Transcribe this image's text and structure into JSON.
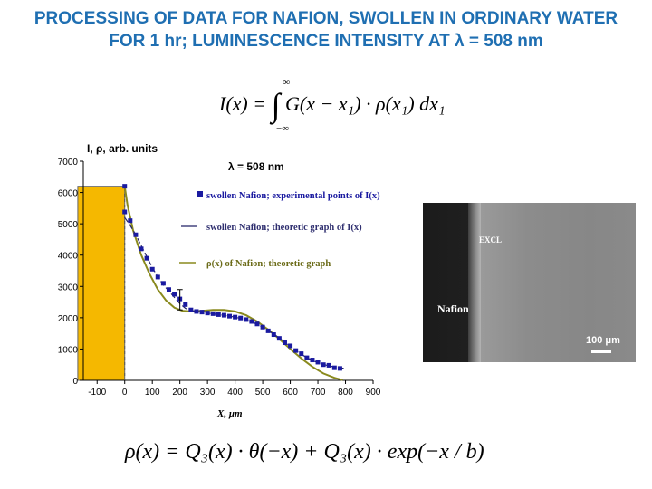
{
  "title_line1": "PROCESSING OF DATA FOR NAFION, SWOLLEN IN ORDINARY WATER",
  "title_line2": "FOR 1 hr; LUMINESCENCE INTENSITY AT λ = 508 nm",
  "formula_top": {
    "lhs": "I(x) = ",
    "upper": "∞",
    "lower": "−∞",
    "integrand": "G(x − x₁) · ρ(x₁) dx₁"
  },
  "formula_bottom": "ρ(x) = Q₃(x) · θ(−x) + Q₃(x) · exp(−x / b)",
  "micrograph": {
    "label_excl": "EXCL",
    "label_nafion": "Nafion",
    "scale_label": "100 μm"
  },
  "chart_data": {
    "type": "line",
    "ylabel": "I, ρ,  arb. units",
    "xlabel": "X, μm",
    "annotation": "λ = 508 nm",
    "xlim": [
      -150,
      900
    ],
    "ylim": [
      0,
      7000
    ],
    "x_ticks": [
      -100,
      0,
      100,
      200,
      300,
      400,
      500,
      600,
      700,
      800,
      900
    ],
    "y_ticks": [
      0,
      1000,
      2000,
      3000,
      4000,
      5000,
      6000,
      7000
    ],
    "legend": [
      "swollen Nafion; experimental points of I(x)",
      "swollen Nafion; theoretic graph of I(x)",
      "ρ(x) of Nafion; theoretic graph"
    ],
    "colors": {
      "bar": "#f5b800",
      "points": "#1a1aa0",
      "theory_I": "#222266",
      "rho": "#8a8a1e"
    },
    "rho_bar": {
      "x_start": -170,
      "x_end": 0,
      "value": 6200
    },
    "series": [
      {
        "name": "swollen Nafion; experimental points of I(x)",
        "points": [
          [
            0,
            6200
          ],
          [
            0,
            5380
          ],
          [
            20,
            5100
          ],
          [
            40,
            4650
          ],
          [
            60,
            4200
          ],
          [
            80,
            3900
          ],
          [
            100,
            3550
          ],
          [
            120,
            3300
          ],
          [
            140,
            3100
          ],
          [
            160,
            2900
          ],
          [
            180,
            2750
          ],
          [
            200,
            2600
          ],
          [
            220,
            2420
          ],
          [
            240,
            2250
          ],
          [
            260,
            2200
          ],
          [
            280,
            2180
          ],
          [
            300,
            2150
          ],
          [
            320,
            2130
          ],
          [
            340,
            2100
          ],
          [
            360,
            2080
          ],
          [
            380,
            2050
          ],
          [
            400,
            2020
          ],
          [
            420,
            1990
          ],
          [
            440,
            1940
          ],
          [
            460,
            1880
          ],
          [
            480,
            1800
          ],
          [
            500,
            1700
          ],
          [
            520,
            1580
          ],
          [
            540,
            1460
          ],
          [
            560,
            1340
          ],
          [
            580,
            1200
          ],
          [
            600,
            1100
          ],
          [
            620,
            950
          ],
          [
            640,
            850
          ],
          [
            660,
            720
          ],
          [
            680,
            650
          ],
          [
            700,
            580
          ],
          [
            720,
            500
          ],
          [
            740,
            480
          ],
          [
            760,
            400
          ],
          [
            780,
            380
          ]
        ]
      },
      {
        "name": "swollen Nafion; theoretic graph of I(x)",
        "points": [
          [
            0,
            5200
          ],
          [
            20,
            4950
          ],
          [
            40,
            4650
          ],
          [
            60,
            4300
          ],
          [
            80,
            3950
          ],
          [
            100,
            3600
          ],
          [
            120,
            3300
          ],
          [
            140,
            3050
          ],
          [
            160,
            2850
          ],
          [
            180,
            2650
          ],
          [
            200,
            2450
          ],
          [
            220,
            2300
          ],
          [
            240,
            2230
          ],
          [
            260,
            2200
          ],
          [
            280,
            2180
          ],
          [
            300,
            2150
          ],
          [
            340,
            2100
          ],
          [
            380,
            2050
          ],
          [
            420,
            1980
          ],
          [
            460,
            1870
          ],
          [
            500,
            1700
          ],
          [
            540,
            1480
          ],
          [
            580,
            1220
          ],
          [
            620,
            950
          ],
          [
            660,
            720
          ],
          [
            700,
            560
          ],
          [
            740,
            460
          ],
          [
            780,
            400
          ],
          [
            800,
            380
          ]
        ]
      },
      {
        "name": "ρ(x) of Nafion; theoretic graph",
        "points": [
          [
            -170,
            6200
          ],
          [
            0,
            6200
          ],
          [
            10,
            5600
          ],
          [
            30,
            4800
          ],
          [
            60,
            4000
          ],
          [
            90,
            3400
          ],
          [
            120,
            2900
          ],
          [
            150,
            2550
          ],
          [
            180,
            2320
          ],
          [
            210,
            2220
          ],
          [
            240,
            2200
          ],
          [
            280,
            2220
          ],
          [
            320,
            2250
          ],
          [
            360,
            2250
          ],
          [
            400,
            2200
          ],
          [
            440,
            2080
          ],
          [
            480,
            1880
          ],
          [
            520,
            1620
          ],
          [
            560,
            1320
          ],
          [
            600,
            1000
          ],
          [
            640,
            700
          ],
          [
            680,
            430
          ],
          [
            720,
            220
          ],
          [
            760,
            80
          ],
          [
            790,
            10
          ]
        ]
      }
    ]
  }
}
